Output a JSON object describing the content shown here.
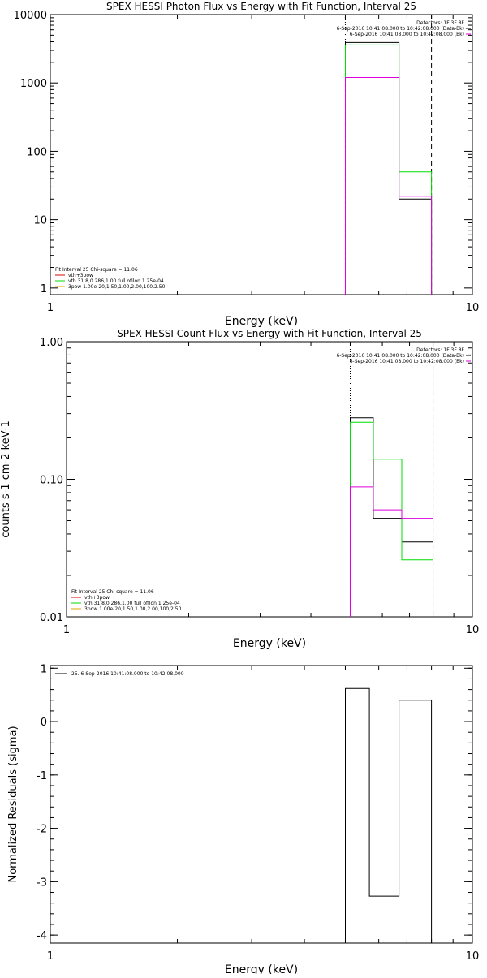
{
  "colors": {
    "black": "#000000",
    "green": "#00dd00",
    "magenta": "#dd00dd",
    "red": "#dd0000",
    "orange": "#ddaa00",
    "frame": "#000000"
  },
  "chart_data": [
    {
      "id": "photon",
      "type": "line",
      "title": "SPEX HESSI Photon Flux vs Energy with Fit Function, Interval 25",
      "xlabel": "Energy (keV)",
      "ylabel": "",
      "xscale": "log",
      "yscale": "log",
      "xlim": [
        1,
        10
      ],
      "ylim": [
        0.8,
        10000
      ],
      "yticks": [
        1,
        10,
        100,
        1000,
        10000
      ],
      "yticklabels": [
        "1",
        "10",
        "100",
        "1000",
        "10000"
      ],
      "xticks": [
        1,
        10
      ],
      "xticklabels": [
        "1",
        "10"
      ],
      "vlines": [
        {
          "x": 5.0,
          "style": "dotted"
        },
        {
          "x": 8.0,
          "style": "dashed"
        }
      ],
      "legend_top": [
        "Detectors: 1F 3F 8F",
        "6-Sep-2016 10:41:08.000 to 10:42:08.000 (Data-Bk)",
        "6-Sep-2016 10:41:08.000 to 10:42:08.000 (Bk)"
      ],
      "legend_top_colors": [
        "black",
        "black",
        "magenta"
      ],
      "legend_bottom": [
        "Fit Interval 25   Chi-square = 11.06",
        "vth+3pow",
        "vth 31.8,0.286,1.00  full ofilon 1.25e-04",
        "3pow 1.00e-20,1.50,1.00,2.00,100,2.50"
      ],
      "legend_bottom_colors": [
        "black",
        "red",
        "green",
        "orange"
      ],
      "series": [
        {
          "name": "6-Sep-2016 10:41:08.000 to 10:42:08.000 (Data-Bk)",
          "color": "black",
          "steps": [
            [
              5.0,
              6.7,
              3900
            ],
            [
              6.7,
              8.0,
              20
            ],
            [
              8.0,
              8.0,
              1.0
            ]
          ]
        },
        {
          "name": "vth+3pow",
          "color": "green",
          "steps": [
            [
              5.0,
              6.7,
              3600
            ],
            [
              6.7,
              8.0,
              50
            ],
            [
              8.0,
              8.0,
              1.0
            ]
          ]
        },
        {
          "name": "6-Sep-2016 10:41:08.000 to 10:42:08.000 (Bk)",
          "color": "magenta",
          "steps": [
            [
              5.0,
              6.7,
              1200
            ],
            [
              6.7,
              8.0,
              22
            ],
            [
              8.0,
              8.0,
              1.5
            ]
          ]
        }
      ]
    },
    {
      "id": "count",
      "type": "line",
      "title": "SPEX HESSI Count Flux vs Energy with Fit Function, Interval 25",
      "xlabel": "Energy (keV)",
      "ylabel": "counts s-1 cm-2 keV-1",
      "xscale": "log",
      "yscale": "log",
      "xlim": [
        1,
        10
      ],
      "ylim": [
        0.01,
        1.0
      ],
      "yticks": [
        0.01,
        0.1,
        1.0
      ],
      "yticklabels": [
        "0.01",
        "0.10",
        "1.00"
      ],
      "xticks": [
        1,
        10
      ],
      "xticklabels": [
        "1",
        "10"
      ],
      "vlines": [
        {
          "x": 5.0,
          "style": "dotted"
        },
        {
          "x": 8.0,
          "style": "dashed"
        }
      ],
      "legend_top": [
        "Detectors: 1F 3F 8F",
        "6-Sep-2016 10:41:08.000 to 10:42:08.000 (Data-Bk)",
        "6-Sep-2016 10:41:08.000 to 10:42:08.000 (Bk)"
      ],
      "legend_top_colors": [
        "black",
        "black",
        "magenta"
      ],
      "legend_bottom": [
        "Fit Interval 25   Chi-square = 11.06",
        "vth+3pow",
        "vth 31.8,0.286,1.00  full ofilon 1.25e-04",
        "3pow 1.00e-20,1.50,1.00,2.00,100,2.50"
      ],
      "legend_bottom_colors": [
        "black",
        "red",
        "green",
        "orange"
      ],
      "series": [
        {
          "name": "6-Sep-2016 10:41:08.000 to 10:42:08.000 (Data-Bk)",
          "color": "black",
          "steps": [
            [
              5.0,
              5.7,
              0.28
            ],
            [
              5.7,
              6.7,
              0.052
            ],
            [
              6.7,
              8.0,
              0.035
            ]
          ]
        },
        {
          "name": "vth+3pow",
          "color": "green",
          "steps": [
            [
              5.0,
              5.7,
              0.26
            ],
            [
              5.7,
              6.7,
              0.14
            ],
            [
              6.7,
              8.0,
              0.026
            ]
          ]
        },
        {
          "name": "6-Sep-2016 10:41:08.000 to 10:42:08.000 (Bk)",
          "color": "magenta",
          "steps": [
            [
              5.0,
              5.7,
              0.088
            ],
            [
              5.7,
              6.7,
              0.06
            ],
            [
              6.7,
              8.0,
              0.052
            ]
          ]
        }
      ]
    },
    {
      "id": "resid",
      "type": "line",
      "title": "",
      "xlabel": "Energy (keV)",
      "ylabel": "Normalized Residuals (sigma)",
      "xscale": "log",
      "yscale": "linear",
      "xlim": [
        1,
        10
      ],
      "ylim": [
        -4.15,
        1.05
      ],
      "yticks": [
        -4,
        -3,
        -2,
        -1,
        0,
        1
      ],
      "yticklabels": [
        "-4",
        "-3",
        "-2",
        "-1",
        "0",
        "1"
      ],
      "xticks": [
        1,
        10
      ],
      "xticklabels": [
        "1",
        "10"
      ],
      "vlines": [],
      "legend_top": [
        "25.  6-Sep-2016 10:41:08.000 to 10:42:08.000"
      ],
      "legend_top_colors": [
        "black"
      ],
      "legend_bottom": [],
      "legend_bottom_colors": [],
      "series": [
        {
          "name": "25.  6-Sep-2016 10:41:08.000 to 10:42:08.000",
          "color": "black",
          "steps": [
            [
              5.0,
              5.7,
              0.62
            ],
            [
              5.7,
              6.7,
              -3.27
            ],
            [
              6.7,
              8.0,
              0.4
            ]
          ]
        }
      ]
    }
  ]
}
